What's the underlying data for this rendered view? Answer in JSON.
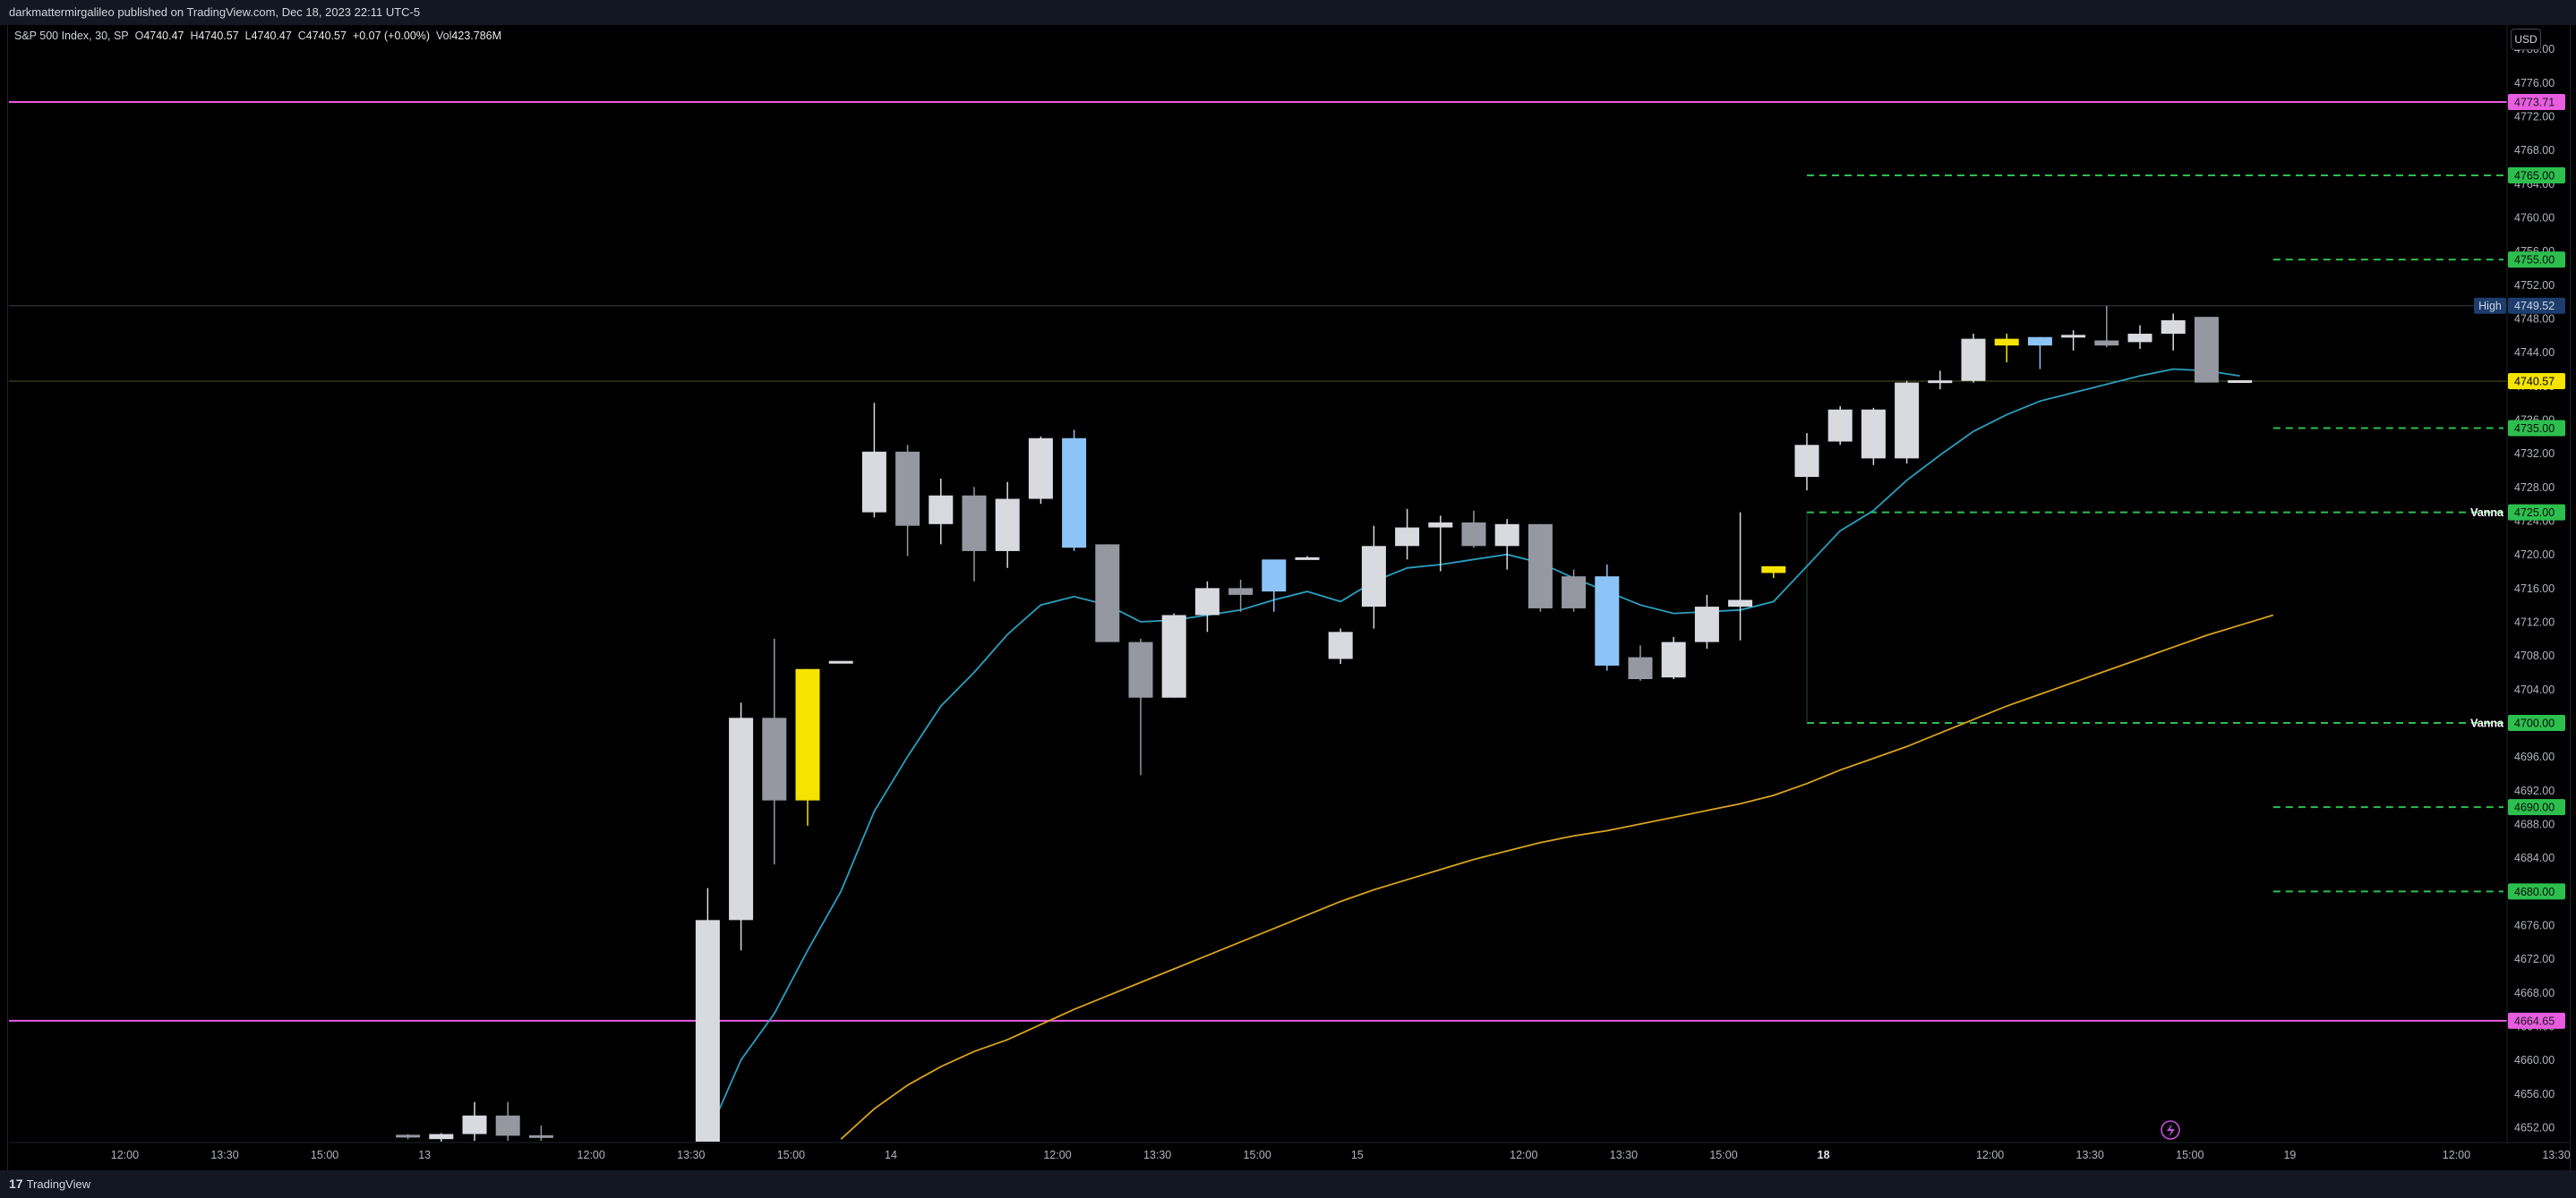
{
  "header": {
    "published": "darkmattermirgalileo published on TradingView.com, Dec 18, 2023 22:11 UTC-5"
  },
  "legend": {
    "symbol": "S&P 500 Index, 30, SP",
    "o_label": "O",
    "o": "4740.47",
    "h_label": "H",
    "h": "4740.57",
    "l_label": "L",
    "l": "4740.47",
    "c_label": "C",
    "c": "4740.57",
    "change": "+0.07 (+0.00%)",
    "vol_label": "Vol",
    "vol": "423.786M"
  },
  "currency": "USD",
  "footer": {
    "brand": "TradingView"
  },
  "colors": {
    "background": "#000000",
    "bull": "#d9d9e0",
    "bear": "#9598a1",
    "highlight_yellow": "#f5e400",
    "highlight_blue": "#8dc4f8",
    "ema_fast": "#2a9fc0",
    "ema_slow": "#d9a31e",
    "hline_magenta": "#e85ce0",
    "level_green": "#2dbf4e",
    "high_label": "#1c3d6e",
    "last_price": "#f5e400"
  },
  "chart_data": {
    "type": "candlestick",
    "title": "S&P 500 Index, 30, SP",
    "ylim": [
      4650.3,
      4782.2
    ],
    "y_ticks": [
      4652,
      4656,
      4660,
      4664,
      4668,
      4672,
      4676,
      4680,
      4684,
      4688,
      4692,
      4696,
      4700,
      4704,
      4708,
      4712,
      4716,
      4720,
      4724,
      4728,
      4732,
      4736,
      4740,
      4744,
      4748,
      4752,
      4756,
      4760,
      4764,
      4768,
      4772,
      4776,
      4780
    ],
    "x_ticks": [
      {
        "label": "12:00",
        "bold": false,
        "i": -25.5
      },
      {
        "label": "13:30",
        "bold": false,
        "i": -22.5
      },
      {
        "label": "15:00",
        "bold": false,
        "i": -19.5
      },
      {
        "label": "13",
        "bold": false,
        "i": -16.5
      },
      {
        "label": "12:00",
        "bold": false,
        "i": -11.5
      },
      {
        "label": "13:30",
        "bold": false,
        "i": -8.5
      },
      {
        "label": "15:00",
        "bold": false,
        "i": -5.5
      },
      {
        "label": "14",
        "bold": false,
        "i": -2.5
      },
      {
        "label": "12:00",
        "bold": false,
        "i": 2.5
      },
      {
        "label": "13:30",
        "bold": false,
        "i": 5.5
      },
      {
        "label": "15:00",
        "bold": false,
        "i": 8.5
      },
      {
        "label": "15",
        "bold": false,
        "i": 11.5
      },
      {
        "label": "12:00",
        "bold": false,
        "i": 16.5
      },
      {
        "label": "13:30",
        "bold": false,
        "i": 19.5
      },
      {
        "label": "15:00",
        "bold": false,
        "i": 22.5
      },
      {
        "label": "18",
        "bold": true,
        "i": 25.5
      },
      {
        "label": "12:00",
        "bold": false,
        "i": 30.5
      },
      {
        "label": "13:30",
        "bold": false,
        "i": 33.5
      },
      {
        "label": "15:00",
        "bold": false,
        "i": 36.5
      },
      {
        "label": "19",
        "bold": false,
        "i": 39.5
      },
      {
        "label": "12:00",
        "bold": false,
        "i": 44.5
      },
      {
        "label": "13:30",
        "bold": false,
        "i": 47.5
      }
    ],
    "candles": [
      {
        "i": -17,
        "o": 4651.0,
        "h": 4651.2,
        "l": 4650.6,
        "c": 4650.9,
        "c_key": "bear"
      },
      {
        "i": -16,
        "o": 4650.6,
        "h": 4651.3,
        "l": 4650.3,
        "c": 4651.2,
        "c_key": "bull"
      },
      {
        "i": -15,
        "o": 4651.2,
        "h": 4655.0,
        "l": 4650.4,
        "c": 4653.4,
        "c_key": "bull"
      },
      {
        "i": -14,
        "o": 4653.4,
        "h": 4655.0,
        "l": 4650.4,
        "c": 4651.0,
        "c_key": "bear"
      },
      {
        "i": -13,
        "o": 4651.0,
        "h": 4652.2,
        "l": 4650.4,
        "c": 4650.8,
        "c_key": "bear"
      },
      {
        "i": -8,
        "o": 4650.3,
        "h": 4680.4,
        "l": 4650.3,
        "c": 4676.6,
        "c_key": "bull"
      },
      {
        "i": -7,
        "o": 4676.6,
        "h": 4702.4,
        "l": 4673.0,
        "c": 4700.6,
        "c_key": "bull"
      },
      {
        "i": -6,
        "o": 4700.6,
        "h": 4710.0,
        "l": 4683.2,
        "c": 4690.8,
        "c_key": "bear"
      },
      {
        "i": -5,
        "o": 4690.8,
        "h": 4706.4,
        "l": 4687.8,
        "c": 4706.4,
        "c_key": "highlight_yellow"
      },
      {
        "i": -4,
        "o": 4707.2,
        "h": 4707.2,
        "l": 4707.2,
        "c": 4707.2,
        "c_key": "bull"
      },
      {
        "i": -3,
        "o": 4725.0,
        "h": 4738.0,
        "l": 4724.4,
        "c": 4732.2,
        "c_key": "bull"
      },
      {
        "i": -2,
        "o": 4732.2,
        "h": 4733.0,
        "l": 4719.8,
        "c": 4723.4,
        "c_key": "bear"
      },
      {
        "i": -1,
        "o": 4727.0,
        "h": 4729.0,
        "l": 4721.2,
        "c": 4723.6,
        "c_key": "bull"
      },
      {
        "i": 0,
        "o": 4727.0,
        "h": 4728.0,
        "l": 4716.8,
        "c": 4720.4,
        "c_key": "bear"
      },
      {
        "i": 1,
        "o": 4720.4,
        "h": 4728.6,
        "l": 4718.4,
        "c": 4726.6,
        "c_key": "bull"
      },
      {
        "i": 2,
        "o": 4726.6,
        "h": 4734.0,
        "l": 4726.0,
        "c": 4733.8,
        "c_key": "bull"
      },
      {
        "i": 3,
        "o": 4733.8,
        "h": 4734.8,
        "l": 4720.4,
        "c": 4720.8,
        "c_key": "highlight_blue"
      },
      {
        "i": 4,
        "o": 4721.2,
        "h": 4721.2,
        "l": 4709.6,
        "c": 4709.6,
        "c_key": "bear"
      },
      {
        "i": 5,
        "o": 4709.6,
        "h": 4710.0,
        "l": 4693.8,
        "c": 4703.0,
        "c_key": "bear"
      },
      {
        "i": 6,
        "o": 4703.0,
        "h": 4713.0,
        "l": 4703.0,
        "c": 4712.8,
        "c_key": "bull"
      },
      {
        "i": 7,
        "o": 4712.8,
        "h": 4716.8,
        "l": 4710.8,
        "c": 4716.0,
        "c_key": "bull"
      },
      {
        "i": 8,
        "o": 4716.0,
        "h": 4717.0,
        "l": 4713.2,
        "c": 4715.2,
        "c_key": "bear"
      },
      {
        "i": 9,
        "o": 4715.6,
        "h": 4719.4,
        "l": 4713.2,
        "c": 4719.4,
        "c_key": "highlight_blue"
      },
      {
        "i": 10,
        "o": 4719.4,
        "h": 4719.8,
        "l": 4719.4,
        "c": 4719.6,
        "c_key": "bull"
      },
      {
        "i": 11,
        "o": 4707.6,
        "h": 4711.2,
        "l": 4707.0,
        "c": 4710.8,
        "c_key": "bull"
      },
      {
        "i": 12,
        "o": 4713.8,
        "h": 4723.4,
        "l": 4711.2,
        "c": 4721.0,
        "c_key": "bull"
      },
      {
        "i": 13,
        "o": 4721.0,
        "h": 4725.4,
        "l": 4719.4,
        "c": 4723.2,
        "c_key": "bull"
      },
      {
        "i": 14,
        "o": 4723.2,
        "h": 4724.6,
        "l": 4718.0,
        "c": 4723.8,
        "c_key": "bull"
      },
      {
        "i": 15,
        "o": 4723.8,
        "h": 4725.2,
        "l": 4720.8,
        "c": 4721.0,
        "c_key": "bear"
      },
      {
        "i": 16,
        "o": 4721.0,
        "h": 4724.2,
        "l": 4718.2,
        "c": 4723.6,
        "c_key": "bull"
      },
      {
        "i": 17,
        "o": 4723.6,
        "h": 4723.6,
        "l": 4713.2,
        "c": 4713.6,
        "c_key": "bear"
      },
      {
        "i": 18,
        "o": 4717.4,
        "h": 4718.2,
        "l": 4713.2,
        "c": 4713.6,
        "c_key": "bear"
      },
      {
        "i": 19,
        "o": 4717.4,
        "h": 4718.8,
        "l": 4706.2,
        "c": 4706.8,
        "c_key": "highlight_blue"
      },
      {
        "i": 20,
        "o": 4707.8,
        "h": 4709.2,
        "l": 4705.0,
        "c": 4705.2,
        "c_key": "bear"
      },
      {
        "i": 21,
        "o": 4705.4,
        "h": 4710.2,
        "l": 4705.2,
        "c": 4709.6,
        "c_key": "bull"
      },
      {
        "i": 22,
        "o": 4709.6,
        "h": 4715.2,
        "l": 4708.8,
        "c": 4713.8,
        "c_key": "bull"
      },
      {
        "i": 23,
        "o": 4713.8,
        "h": 4725.0,
        "l": 4709.8,
        "c": 4714.6,
        "c_key": "bull"
      },
      {
        "i": 24,
        "o": 4717.8,
        "h": 4718.6,
        "l": 4717.2,
        "c": 4718.6,
        "c_key": "highlight_yellow"
      },
      {
        "i": 25,
        "o": 4729.2,
        "h": 4734.4,
        "l": 4727.6,
        "c": 4733.0,
        "c_key": "bull"
      },
      {
        "i": 26,
        "o": 4733.4,
        "h": 4737.6,
        "l": 4733.0,
        "c": 4737.2,
        "c_key": "bull"
      },
      {
        "i": 27,
        "o": 4731.4,
        "h": 4737.4,
        "l": 4730.6,
        "c": 4737.2,
        "c_key": "bull"
      },
      {
        "i": 28,
        "o": 4731.4,
        "h": 4740.6,
        "l": 4730.8,
        "c": 4740.4,
        "c_key": "bull"
      },
      {
        "i": 29,
        "o": 4740.4,
        "h": 4741.8,
        "l": 4739.6,
        "c": 4740.6,
        "c_key": "bull"
      },
      {
        "i": 30,
        "o": 4740.6,
        "h": 4746.2,
        "l": 4740.4,
        "c": 4745.6,
        "c_key": "bull"
      },
      {
        "i": 31,
        "o": 4745.6,
        "h": 4746.2,
        "l": 4742.8,
        "c": 4744.8,
        "c_key": "highlight_yellow"
      },
      {
        "i": 32,
        "o": 4744.8,
        "h": 4745.8,
        "l": 4742.0,
        "c": 4745.8,
        "c_key": "highlight_blue"
      },
      {
        "i": 33,
        "o": 4745.8,
        "h": 4746.6,
        "l": 4744.2,
        "c": 4746.0,
        "c_key": "bull"
      },
      {
        "i": 34,
        "o": 4744.8,
        "h": 4749.5,
        "l": 4744.6,
        "c": 4745.4,
        "c_key": "bear"
      },
      {
        "i": 35,
        "o": 4745.2,
        "h": 4747.2,
        "l": 4744.4,
        "c": 4746.2,
        "c_key": "bull"
      },
      {
        "i": 36,
        "o": 4746.2,
        "h": 4748.6,
        "l": 4744.2,
        "c": 4747.8,
        "c_key": "bull"
      },
      {
        "i": 37,
        "o": 4748.2,
        "h": 4748.2,
        "l": 4740.4,
        "c": 4740.4,
        "c_key": "bear"
      },
      {
        "i": 38,
        "o": 4740.47,
        "h": 4740.57,
        "l": 4740.47,
        "c": 4740.57,
        "c_key": "bull"
      }
    ],
    "ema_fast": [
      [
        -8,
        4651.0
      ],
      [
        -7,
        4660.0
      ],
      [
        -6,
        4665.5
      ],
      [
        -5,
        4673.0
      ],
      [
        -4,
        4680.0
      ],
      [
        -3,
        4689.5
      ],
      [
        -2,
        4696.0
      ],
      [
        -1,
        4702.0
      ],
      [
        0,
        4706.0
      ],
      [
        1,
        4710.5
      ],
      [
        2,
        4714.0
      ],
      [
        3,
        4715.0
      ],
      [
        4,
        4714.0
      ],
      [
        5,
        4712.0
      ],
      [
        6,
        4712.2
      ],
      [
        7,
        4712.8
      ],
      [
        8,
        4713.4
      ],
      [
        9,
        4714.6
      ],
      [
        10,
        4715.6
      ],
      [
        11,
        4714.4
      ],
      [
        12,
        4716.8
      ],
      [
        13,
        4718.4
      ],
      [
        14,
        4718.8
      ],
      [
        15,
        4719.4
      ],
      [
        16,
        4720.0
      ],
      [
        17,
        4719.0
      ],
      [
        18,
        4717.2
      ],
      [
        19,
        4715.6
      ],
      [
        20,
        4714.0
      ],
      [
        21,
        4713.0
      ],
      [
        22,
        4713.2
      ],
      [
        23,
        4713.4
      ],
      [
        24,
        4714.4
      ],
      [
        25,
        4718.6
      ],
      [
        26,
        4722.8
      ],
      [
        27,
        4725.2
      ],
      [
        28,
        4728.8
      ],
      [
        29,
        4731.8
      ],
      [
        30,
        4734.6
      ],
      [
        31,
        4736.6
      ],
      [
        32,
        4738.2
      ],
      [
        33,
        4739.2
      ],
      [
        34,
        4740.2
      ],
      [
        35,
        4741.2
      ],
      [
        36,
        4742.0
      ],
      [
        37,
        4741.8
      ],
      [
        38,
        4741.2
      ]
    ],
    "ema_slow": [
      [
        -4,
        4650.6
      ],
      [
        -3,
        4654.2
      ],
      [
        -2,
        4657.0
      ],
      [
        -1,
        4659.2
      ],
      [
        0,
        4661.0
      ],
      [
        1,
        4662.4
      ],
      [
        2,
        4664.2
      ],
      [
        3,
        4666.0
      ],
      [
        4,
        4667.6
      ],
      [
        5,
        4669.2
      ],
      [
        6,
        4670.8
      ],
      [
        7,
        4672.4
      ],
      [
        8,
        4674.0
      ],
      [
        9,
        4675.6
      ],
      [
        10,
        4677.2
      ],
      [
        11,
        4678.8
      ],
      [
        12,
        4680.2
      ],
      [
        13,
        4681.4
      ],
      [
        14,
        4682.6
      ],
      [
        15,
        4683.8
      ],
      [
        16,
        4684.8
      ],
      [
        17,
        4685.8
      ],
      [
        18,
        4686.6
      ],
      [
        19,
        4687.2
      ],
      [
        20,
        4688.0
      ],
      [
        21,
        4688.8
      ],
      [
        22,
        4689.6
      ],
      [
        23,
        4690.4
      ],
      [
        24,
        4691.4
      ],
      [
        25,
        4692.8
      ],
      [
        26,
        4694.4
      ],
      [
        27,
        4695.8
      ],
      [
        28,
        4697.2
      ],
      [
        29,
        4698.8
      ],
      [
        30,
        4700.4
      ],
      [
        31,
        4702.0
      ],
      [
        32,
        4703.4
      ],
      [
        33,
        4704.8
      ],
      [
        34,
        4706.2
      ],
      [
        35,
        4707.6
      ],
      [
        36,
        4709.0
      ],
      [
        37,
        4710.4
      ],
      [
        38,
        4711.6
      ],
      [
        39,
        4712.8
      ]
    ],
    "horizontal_lines": [
      {
        "value": 4773.71,
        "label": "4773.71",
        "color_key": "hline_magenta",
        "style": "solid",
        "full": true
      },
      {
        "value": 4664.65,
        "label": "4664.65",
        "color_key": "hline_magenta",
        "style": "solid",
        "full": true
      }
    ],
    "levels": [
      {
        "value": 4765.0,
        "label": "4765.00",
        "from_i": 25,
        "tag": ""
      },
      {
        "value": 4755.0,
        "label": "4755.00",
        "from_i": 39,
        "tag": ""
      },
      {
        "value": 4735.0,
        "label": "4735.00",
        "from_i": 39,
        "tag": ""
      },
      {
        "value": 4725.0,
        "label": "4725.00",
        "from_i": 25,
        "tag": "Vanna"
      },
      {
        "value": 4700.0,
        "label": "4700.00",
        "from_i": 25,
        "tag": "Vanna"
      },
      {
        "value": 4690.0,
        "label": "4690.00",
        "from_i": 39,
        "tag": ""
      },
      {
        "value": 4680.0,
        "label": "4680.00",
        "from_i": 39,
        "tag": ""
      }
    ],
    "high": {
      "value": 4749.52,
      "label": "4749.52",
      "tag": "High"
    },
    "last_price": {
      "value": 4740.57,
      "label": "4740.57"
    }
  }
}
